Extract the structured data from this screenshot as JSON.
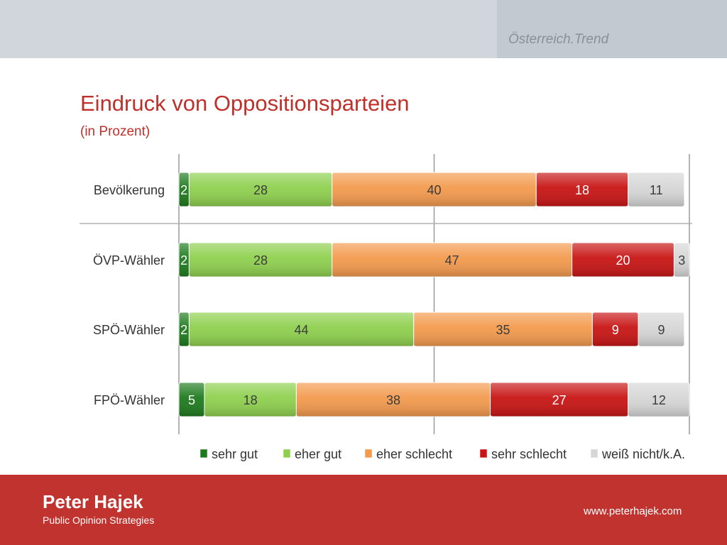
{
  "header": {
    "brand": "Österreich.Trend"
  },
  "title": "Eindruck von Oppositionsparteien",
  "subtitle": "(in Prozent)",
  "chart_data": {
    "type": "bar",
    "orientation": "horizontal",
    "stacked": true,
    "categories": [
      "Bevölkerung",
      "ÖVP-Wähler",
      "SPÖ-Wähler",
      "FPÖ-Wähler"
    ],
    "series": [
      {
        "name": "sehr gut",
        "values": [
          2,
          2,
          2,
          5
        ],
        "color": "#1e7a1e"
      },
      {
        "name": "eher gut",
        "values": [
          28,
          28,
          44,
          18
        ],
        "color": "#8ed04e"
      },
      {
        "name": "eher schlecht",
        "values": [
          40,
          47,
          35,
          38
        ],
        "color": "#f39a4d"
      },
      {
        "name": "sehr schlecht",
        "values": [
          18,
          20,
          9,
          27
        ],
        "color": "#c81414"
      },
      {
        "name": "weiß nicht/k.A.",
        "values": [
          11,
          3,
          9,
          12
        ],
        "color": "#d6d6d6"
      }
    ],
    "xlim": [
      0,
      100
    ],
    "grid": true,
    "legend": "bottom"
  },
  "footer": {
    "name": "Peter Hajek",
    "tagline": "Public Opinion Strategies",
    "url": "www.peterhajek.com"
  }
}
